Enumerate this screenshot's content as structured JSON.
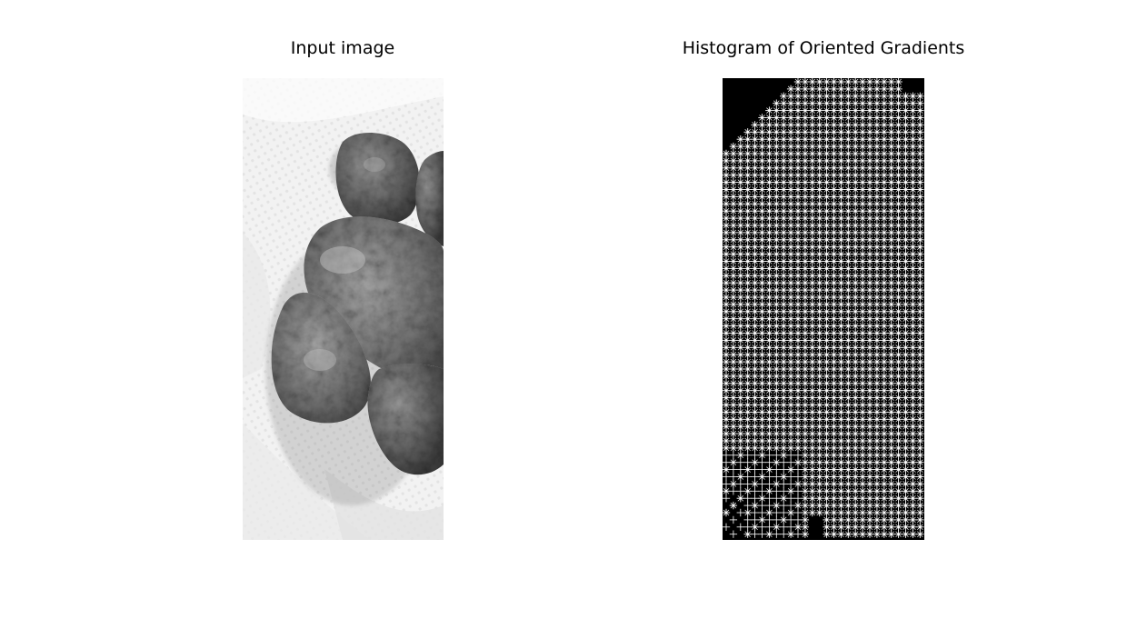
{
  "panels": [
    {
      "title": "Input image"
    },
    {
      "title": "Histogram of Oriented Gradients"
    }
  ],
  "colors": {
    "background": "#ffffff",
    "hog_background": "#000000",
    "hog_cells": "#ffffff"
  }
}
